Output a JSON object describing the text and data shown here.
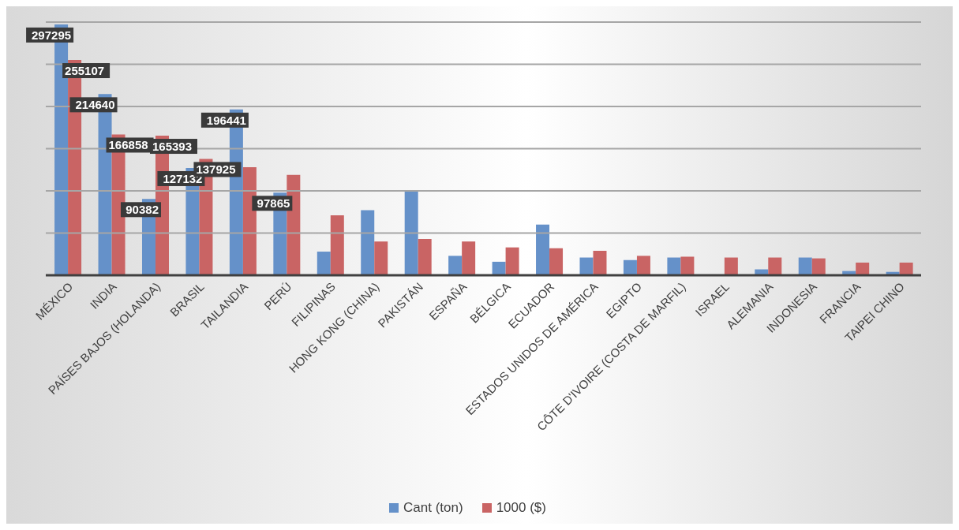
{
  "chart_data": {
    "type": "bar",
    "categories": [
      "MÉXICO",
      "INDIA",
      "PAÍSES BAJOS (HOLANDA)",
      "BRASIL",
      "TAILANDIA",
      "PERÚ",
      "FILIPINAS",
      "HONG KONG (CHINA)",
      "PAKISTÁN",
      "ESPAÑA",
      "BÉLGICA",
      "ECUADOR",
      "ESTADOS UNIDOS DE AMÉRICA",
      "EGIPTO",
      "CÔTE D'IVOIRE (COSTA DE MARFIL)",
      "ISRAEL",
      "ALEMANIA",
      "INDONESIA",
      "FRANCIA",
      "TAIPEI CHINO"
    ],
    "series": [
      {
        "name": "Cant (ton)",
        "color": "#6591c9",
        "values": [
          297295,
          214640,
          90382,
          127132,
          196441,
          97865,
          28000,
          77000,
          99000,
          23000,
          16000,
          60000,
          21000,
          18000,
          21000,
          0,
          7000,
          21000,
          5000,
          4000
        ],
        "value_labels": [
          "297295",
          "214640",
          "90382",
          "127132",
          "196441",
          "97865",
          null,
          null,
          null,
          null,
          null,
          null,
          null,
          null,
          null,
          null,
          null,
          null,
          null,
          null
        ]
      },
      {
        "name": "1000 ($)",
        "color": "#c96464",
        "values": [
          255107,
          166858,
          165393,
          137925,
          128000,
          119000,
          71000,
          40000,
          43000,
          40000,
          33000,
          32000,
          29000,
          23000,
          22000,
          21000,
          21000,
          20000,
          15000,
          15000
        ],
        "value_labels": [
          "255107",
          "166858",
          "165393",
          "137925",
          null,
          null,
          null,
          null,
          null,
          null,
          null,
          null,
          null,
          null,
          null,
          null,
          null,
          null,
          null,
          null
        ]
      }
    ],
    "ylim": [
      0,
      300000
    ],
    "yticks": [
      {
        "value": 0,
        "label": null
      },
      {
        "value": 50000,
        "label": null
      },
      {
        "value": 100000,
        "label": null
      },
      {
        "value": 150000,
        "label": null
      },
      {
        "value": 200000,
        "label": null
      },
      {
        "value": 250000,
        "label": null
      },
      {
        "value": 300000,
        "label": null
      }
    ],
    "tick_labels": "x",
    "grid": "y",
    "legend": "bottom"
  }
}
